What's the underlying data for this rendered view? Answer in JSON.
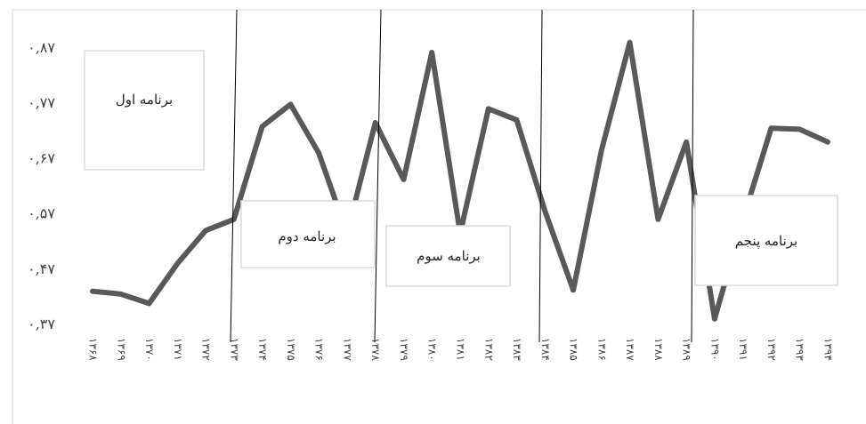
{
  "chart_data": {
    "type": "line",
    "title": "",
    "xlabel": "",
    "ylabel": "",
    "ylim": [
      0.37,
      0.87
    ],
    "yticks": [
      "۰,۳۷",
      "۰,۴۷",
      "۰,۵۷",
      "۰,۶۷",
      "۰,۷۷",
      "۰,۸۷"
    ],
    "categories": [
      "۱۳۶۸",
      "۱۳۶۹",
      "۱۳۷۰",
      "۱۳۷۱",
      "۱۳۷۲",
      "۱۳۷۳",
      "۱۳۷۴",
      "۱۳۷۵",
      "۱۳۷۶",
      "۱۳۷۷",
      "۱۳۷۸",
      "۱۳۷۹",
      "۱۳۸۰",
      "۱۳۸۱",
      "۱۳۸۲",
      "۱۳۸۳",
      "۱۳۸۴",
      "۱۳۸۵",
      "۱۳۸۶",
      "۱۳۸۷",
      "۱۳۸۸",
      "۱۳۸۹",
      "۱۳۹۰",
      "۱۳۹۱",
      "۱۳۹۲",
      "۱۳۹۳",
      "۱۳۹۴"
    ],
    "series": [
      {
        "color": "#595959",
        "values": [
          0.43,
          0.425,
          0.408,
          0.48,
          0.54,
          0.56,
          0.728,
          0.768,
          0.68,
          0.535,
          0.735,
          0.632,
          0.862,
          0.535,
          0.76,
          0.74,
          0.575,
          0.432,
          0.685,
          0.88,
          0.56,
          0.7,
          0.38,
          0.56,
          0.725,
          0.723,
          0.7
        ]
      }
    ],
    "grid": false,
    "legend": "none",
    "annotations": [
      {
        "label": "برنامه اول"
      },
      {
        "label": "برنامه دوم"
      },
      {
        "label": "برنامه سوم"
      },
      {
        "label": "برنامه پنجم"
      }
    ]
  }
}
